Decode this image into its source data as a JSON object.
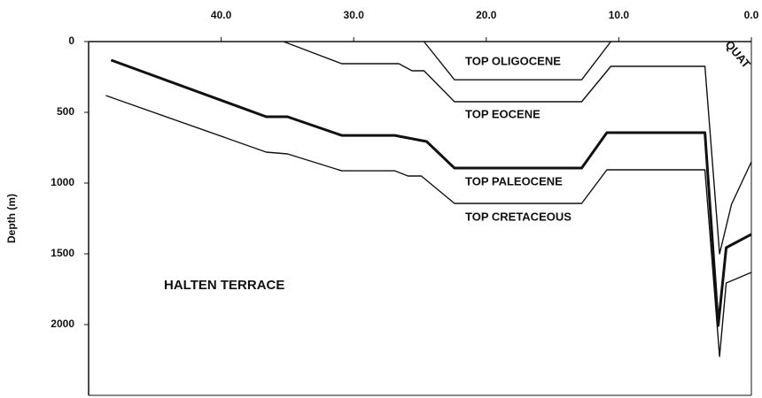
{
  "chart_data": {
    "type": "line",
    "y_label": "Depth (m)",
    "xlim": [
      50,
      0
    ],
    "ylim": [
      0,
      2500
    ],
    "xticks": [
      {
        "value": 40,
        "label": "40.0"
      },
      {
        "value": 30,
        "label": "30.0"
      },
      {
        "value": 20,
        "label": "20.0"
      },
      {
        "value": 10,
        "label": "10.0"
      },
      {
        "value": 0,
        "label": "0.0"
      }
    ],
    "yticks": [
      0,
      500,
      1000,
      1500,
      2000
    ],
    "series": [
      {
        "name": "TOP OLIGOCENE",
        "color": "#111111",
        "x": [
          24.7,
          22.4,
          12.8,
          10.6
        ],
        "values": [
          0,
          270,
          270,
          0
        ]
      },
      {
        "name": "TOP EOCENE",
        "color": "#111111",
        "x": [
          35.3,
          30.9,
          26.6,
          25.6,
          24.7,
          22.4,
          12.8,
          10.6,
          3.5,
          2.4,
          1.5,
          0
        ],
        "values": [
          0,
          156,
          156,
          206,
          206,
          425,
          425,
          175,
          175,
          1500,
          1150,
          850
        ]
      },
      {
        "name": "TOP PALEOCENE",
        "color": "#111111",
        "x": [
          48.3,
          36.6,
          35.0,
          30.9,
          26.9,
          24.5,
          22.4,
          12.8,
          10.9,
          3.5,
          2.5,
          1.9,
          0
        ],
        "values": [
          131,
          531,
          531,
          663,
          663,
          706,
          894,
          894,
          644,
          644,
          2006,
          1456,
          1362
        ]
      },
      {
        "name": "TOP CRETACEOUS",
        "color": "#111111",
        "x": [
          48.7,
          36.6,
          35.0,
          30.9,
          26.9,
          25.9,
          24.9,
          22.4,
          12.8,
          10.9,
          3.5,
          2.4,
          1.9,
          0
        ],
        "values": [
          381,
          781,
          794,
          913,
          913,
          950,
          950,
          1144,
          1144,
          906,
          906,
          2225,
          1706,
          1631
        ]
      }
    ],
    "annotations": [
      "TOP OLIGOCENE",
      "TOP EOCENE",
      "TOP PALEOCENE",
      "TOP CRETACEOUS",
      "HALTEN TERRACE",
      "QUAT"
    ]
  }
}
